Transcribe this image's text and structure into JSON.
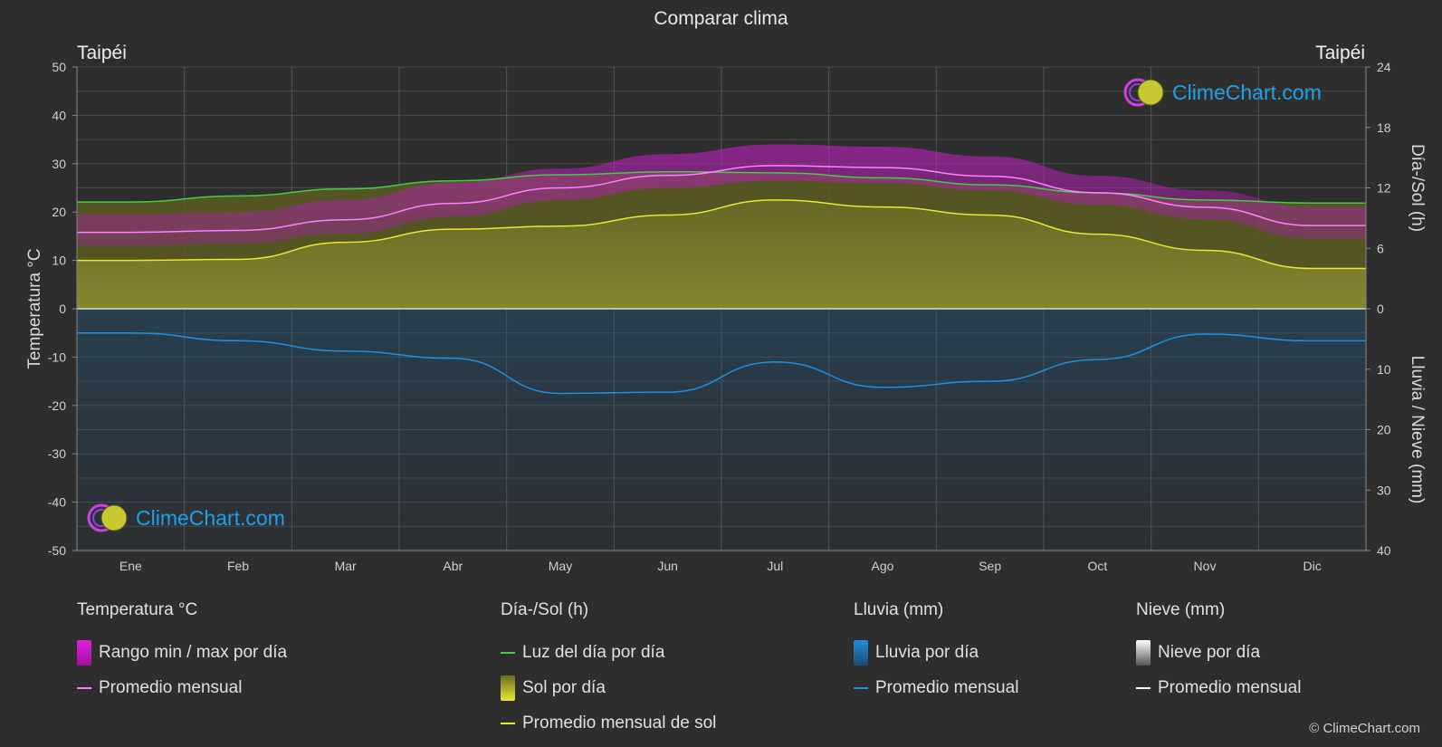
{
  "title": "Comparar clima",
  "city_left": "Taipéi",
  "city_right": "Taipéi",
  "brand": "ClimeChart.com",
  "copyright": "© ClimeChart.com",
  "colors": {
    "background": "#2e2e2e",
    "temp_range": "#d020d0",
    "temp_avg": "#ff80ff",
    "daylight": "#44cc44",
    "sunshine": "#b8b830",
    "sun_avg": "#e8e830",
    "rain": "#2a6a9a",
    "rain_avg": "#1e90e0",
    "snow": "#ffffff",
    "brand": "#1fa0e8"
  },
  "legend": {
    "temperature": {
      "heading": "Temperatura °C",
      "range_label": "Rango min / max por día",
      "avg_label": "Promedio mensual"
    },
    "daysun": {
      "heading": "Día-/Sol (h)",
      "daylight_label": "Luz del día por día",
      "sun_label": "Sol por día",
      "sun_avg_label": "Promedio mensual de sol"
    },
    "rain": {
      "heading": "Lluvia (mm)",
      "rain_label": "Lluvia por día",
      "avg_label": "Promedio mensual"
    },
    "snow": {
      "heading": "Nieve (mm)",
      "snow_label": "Nieve por día",
      "avg_label": "Promedio mensual"
    }
  },
  "chart_data": {
    "type": "area",
    "months": [
      "Ene",
      "Feb",
      "Mar",
      "Abr",
      "May",
      "Jun",
      "Jul",
      "Ago",
      "Sep",
      "Oct",
      "Nov",
      "Dic"
    ],
    "y_left": {
      "label": "Temperatura °C",
      "min": -50,
      "max": 50,
      "ticks": [
        50,
        40,
        30,
        20,
        10,
        0,
        -10,
        -20,
        -30,
        -40,
        -50
      ]
    },
    "y_right_top": {
      "label": "Día-/Sol (h)",
      "min": 0,
      "max": 24,
      "ticks": [
        24,
        18,
        12,
        6,
        0
      ]
    },
    "y_right_bottom": {
      "label": "Lluvia / Nieve (mm)",
      "min": 0,
      "max": 40,
      "ticks": [
        0,
        10,
        20,
        30,
        40
      ]
    },
    "series": [
      {
        "name": "Promedio mensual",
        "kind": "temp_avg",
        "unit": "°C",
        "values": [
          15.8,
          16.2,
          18.4,
          21.8,
          25.0,
          27.6,
          29.6,
          29.2,
          27.4,
          24.0,
          21.0,
          17.2
        ]
      },
      {
        "name": "Rango min / max por día (min)",
        "kind": "temp_min",
        "unit": "°C",
        "values": [
          13,
          13.5,
          15.5,
          19,
          22.5,
          25,
          26.5,
          26,
          24.5,
          21.5,
          18.5,
          14.5
        ]
      },
      {
        "name": "Rango min / max por día (max)",
        "kind": "temp_max",
        "unit": "°C",
        "values": [
          19.5,
          20,
          22.5,
          26,
          29,
          32,
          34,
          33.5,
          31.5,
          27.5,
          24.5,
          21
        ]
      },
      {
        "name": "Luz del día por día",
        "kind": "daylight",
        "unit": "h",
        "values": [
          10.6,
          11.2,
          11.9,
          12.7,
          13.3,
          13.6,
          13.5,
          13.0,
          12.3,
          11.5,
          10.8,
          10.5
        ]
      },
      {
        "name": "Promedio mensual de sol",
        "kind": "sun_avg",
        "unit": "h",
        "values": [
          4.8,
          4.9,
          6.6,
          7.9,
          8.2,
          9.3,
          10.8,
          10.1,
          9.3,
          7.4,
          5.8,
          4.0
        ]
      },
      {
        "name": "Promedio mensual",
        "kind": "rain_avg",
        "unit": "mm",
        "values": [
          4.0,
          5.3,
          7.0,
          8.2,
          14.0,
          13.8,
          8.8,
          13.0,
          12.0,
          8.4,
          4.2,
          5.3
        ]
      }
    ],
    "grid": true,
    "legend_position": "bottom"
  }
}
